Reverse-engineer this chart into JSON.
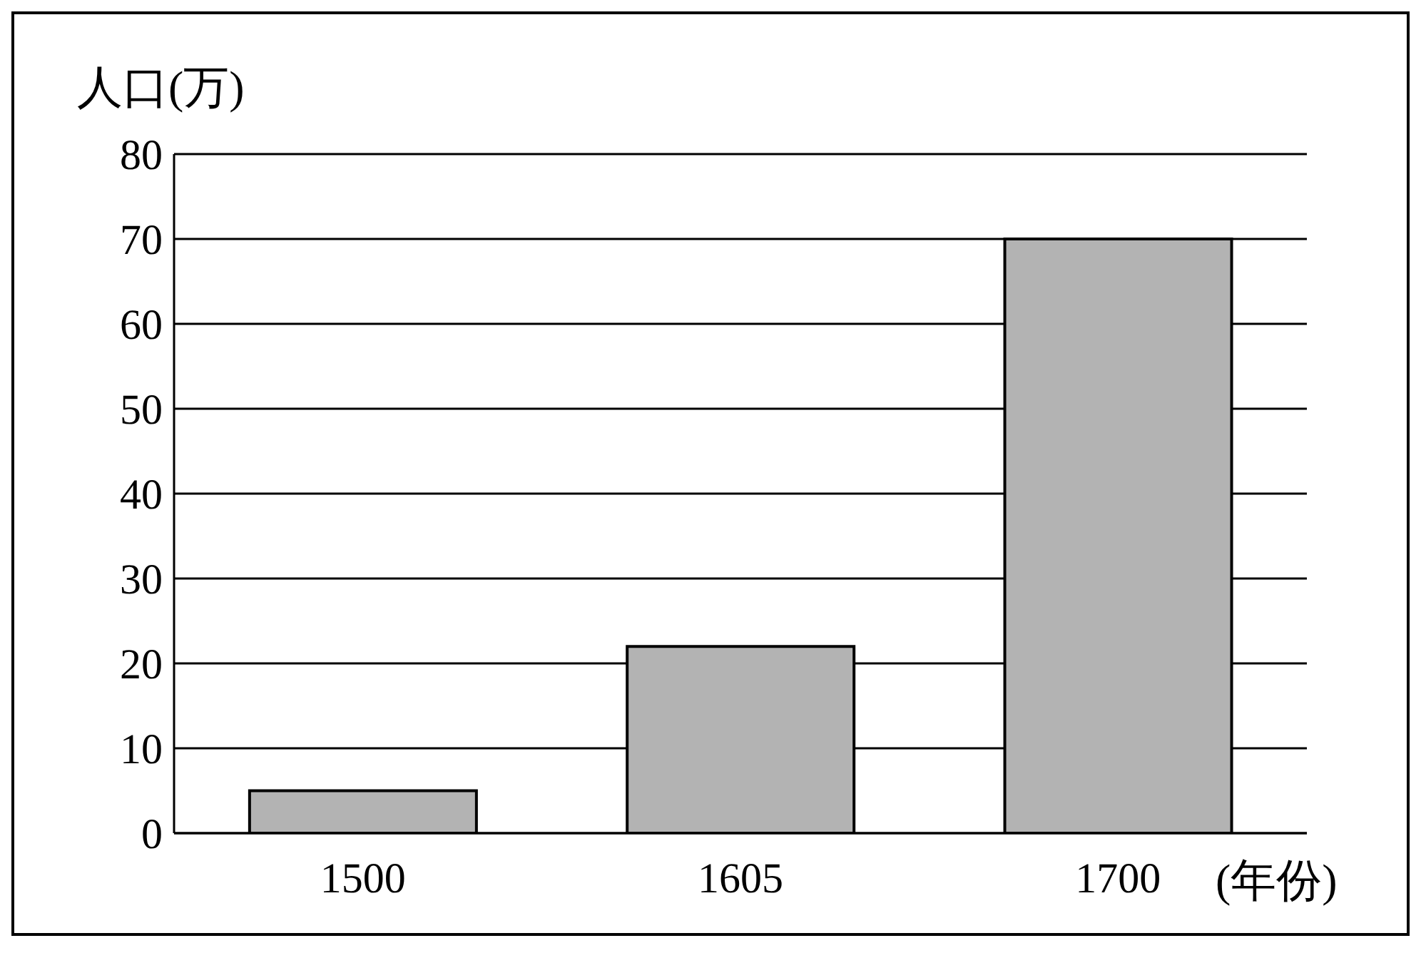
{
  "chart_data": {
    "type": "bar",
    "ylabel": "人口(万)",
    "xlabel": "(年份)",
    "categories": [
      "1500",
      "1605",
      "1700"
    ],
    "values": [
      5,
      22,
      70
    ],
    "color": "#b3b3b3",
    "ylim": [
      0,
      80
    ],
    "yticks": [
      0,
      10,
      20,
      30,
      40,
      50,
      60,
      70,
      80
    ],
    "grid": "y"
  }
}
